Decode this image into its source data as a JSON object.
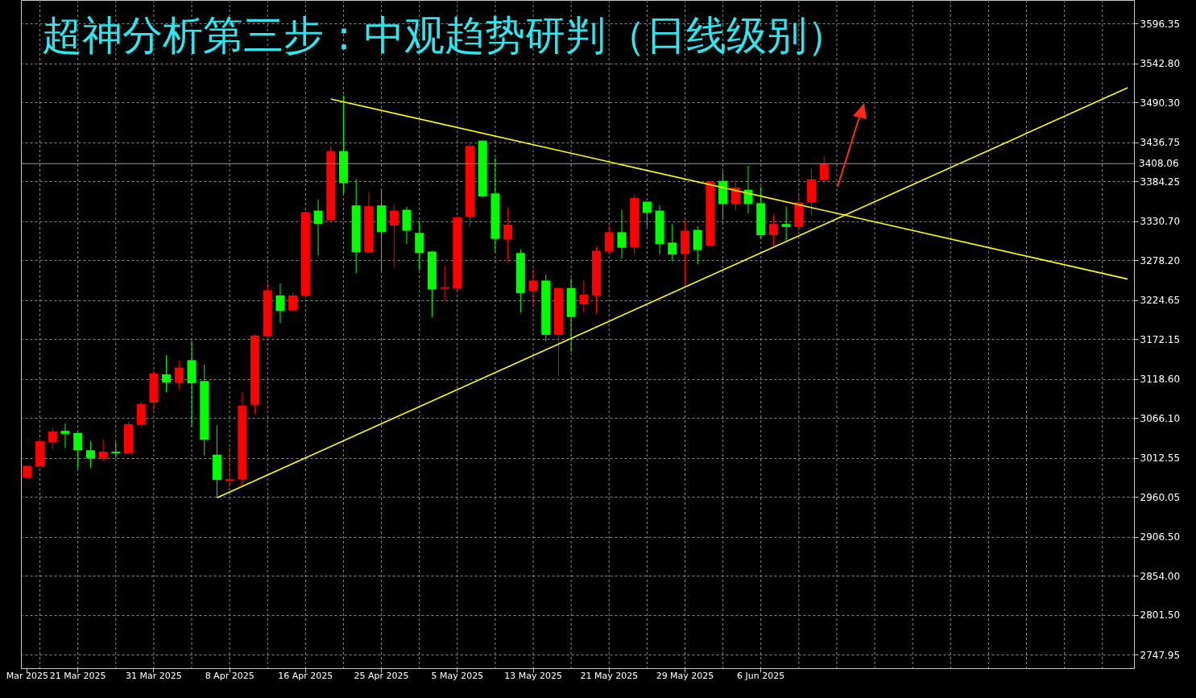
{
  "chart_data": {
    "type": "candlestick",
    "title": "超神分析第三步：中观趋势研判（日线级别）",
    "categories": [
      "Mar 2025",
      null,
      null,
      null,
      "21 Mar 2025",
      null,
      null,
      null,
      null,
      null,
      "31 Mar 2025",
      null,
      null,
      null,
      null,
      null,
      "8 Apr 2025",
      null,
      null,
      null,
      null,
      null,
      "16 Apr 2025",
      null,
      null,
      null,
      null,
      null,
      "25 Apr 2025",
      null,
      null,
      null,
      null,
      null,
      "5 May 2025",
      null,
      null,
      null,
      null,
      null,
      "13 May 2025",
      null,
      null,
      null,
      null,
      null,
      "21 May 2025",
      null,
      null,
      null,
      null,
      null,
      "29 May 2025",
      null,
      null,
      null,
      null,
      null,
      "6 Jun 2025",
      null,
      null,
      null,
      null,
      null,
      null,
      null,
      null,
      null,
      null,
      null,
      null,
      null,
      null,
      null,
      null,
      null,
      null,
      null,
      null,
      null,
      null,
      null,
      null,
      null,
      null,
      null,
      null,
      null
    ],
    "ohlc": [
      [
        2986,
        3003,
        2984,
        3002
      ],
      [
        3001,
        3039,
        3001,
        3035
      ],
      [
        3034,
        3053,
        3024,
        3048
      ],
      [
        3049,
        3059,
        3026,
        3045
      ],
      [
        3046,
        3047,
        2998,
        3023
      ],
      [
        3023,
        3035,
        2999,
        3012
      ],
      [
        3012,
        3037,
        3008,
        3021
      ],
      [
        3021,
        3034,
        3012,
        3019
      ],
      [
        3019,
        3061,
        3018,
        3058
      ],
      [
        3057,
        3088,
        3054,
        3085
      ],
      [
        3087,
        3130,
        3077,
        3126
      ],
      [
        3125,
        3151,
        3101,
        3114
      ],
      [
        3114,
        3144,
        3105,
        3134
      ],
      [
        3144,
        3170,
        3055,
        3113
      ],
      [
        3116,
        3138,
        3016,
        3037
      ],
      [
        3017,
        3057,
        2959,
        2983
      ],
      [
        2982,
        3027,
        2973,
        2984
      ],
      [
        2984,
        3101,
        2975,
        3083
      ],
      [
        3084,
        3179,
        3072,
        3177
      ],
      [
        3176,
        3247,
        3175,
        3238
      ],
      [
        3231,
        3247,
        3194,
        3210
      ],
      [
        3211,
        3235,
        3210,
        3231
      ],
      [
        3231,
        3344,
        3230,
        3343
      ],
      [
        3345,
        3360,
        3285,
        3327
      ],
      [
        3332,
        3432,
        3329,
        3425
      ],
      [
        3425,
        3500,
        3368,
        3382
      ],
      [
        3352,
        3387,
        3261,
        3289
      ],
      [
        3289,
        3370,
        3289,
        3351
      ],
      [
        3352,
        3372,
        3264,
        3316
      ],
      [
        3325,
        3354,
        3269,
        3345
      ],
      [
        3346,
        3350,
        3300,
        3318
      ],
      [
        3315,
        3331,
        3265,
        3288
      ],
      [
        3290,
        3291,
        3202,
        3239
      ],
      [
        3240,
        3271,
        3224,
        3242
      ],
      [
        3240,
        3338,
        3237,
        3336
      ],
      [
        3337,
        3437,
        3323,
        3432
      ],
      [
        3439,
        3439,
        3362,
        3364
      ],
      [
        3368,
        3416,
        3289,
        3307
      ],
      [
        3306,
        3349,
        3275,
        3326
      ],
      [
        3288,
        3293,
        3208,
        3234
      ],
      [
        3237,
        3267,
        3217,
        3251
      ],
      [
        3251,
        3259,
        3169,
        3178
      ],
      [
        3178,
        3241,
        3123,
        3241
      ],
      [
        3241,
        3254,
        3155,
        3202
      ],
      [
        3219,
        3251,
        3208,
        3232
      ],
      [
        3231,
        3297,
        3206,
        3291
      ],
      [
        3290,
        3326,
        3286,
        3316
      ],
      [
        3316,
        3346,
        3280,
        3295
      ],
      [
        3296,
        3367,
        3287,
        3362
      ],
      [
        3357,
        3357,
        3323,
        3342
      ],
      [
        3345,
        3352,
        3286,
        3300
      ],
      [
        3302,
        3327,
        3277,
        3286
      ],
      [
        3287,
        3332,
        3245,
        3318
      ],
      [
        3319,
        3324,
        3273,
        3292
      ],
      [
        3298,
        3386,
        3297,
        3384
      ],
      [
        3385,
        3397,
        3334,
        3354
      ],
      [
        3354,
        3387,
        3345,
        3376
      ],
      [
        3373,
        3405,
        3341,
        3354
      ],
      [
        3355,
        3377,
        3307,
        3312
      ],
      [
        3312,
        3340,
        3298,
        3327
      ],
      [
        3327,
        3350,
        3305,
        3323
      ],
      [
        3323,
        3365,
        3317,
        3356
      ],
      [
        3356,
        3401,
        3339,
        3387
      ],
      [
        3386,
        3418,
        3381,
        3408
      ],
      null,
      null,
      null,
      null,
      null,
      null,
      null,
      null,
      null,
      null,
      null,
      null,
      null,
      null,
      null,
      null,
      null,
      null,
      null,
      null,
      null,
      null,
      null,
      null
    ],
    "colors": [
      "#ff0000",
      "#ff0000",
      "#ff0000",
      "#00ff00",
      "#00ff00",
      "#00ff00",
      "#ff0000",
      "#00ff00",
      "#ff0000",
      "#ff0000",
      "#ff0000",
      "#00ff00",
      "#ff0000",
      "#00ff00",
      "#00ff00",
      "#00ff00",
      "#ff0000",
      "#ff0000",
      "#ff0000",
      "#ff0000",
      "#00ff00",
      "#ff0000",
      "#ff0000",
      "#00ff00",
      "#ff0000",
      "#00ff00",
      "#00ff00",
      "#ff0000",
      "#00ff00",
      "#ff0000",
      "#00ff00",
      "#00ff00",
      "#00ff00",
      "#ff0000",
      "#ff0000",
      "#ff0000",
      "#00ff00",
      "#00ff00",
      "#ff0000",
      "#00ff00",
      "#ff0000",
      "#00ff00",
      "#ff0000",
      "#00ff00",
      "#ff0000",
      "#ff0000",
      "#ff0000",
      "#00ff00",
      "#ff0000",
      "#00ff00",
      "#00ff00",
      "#00ff00",
      "#ff0000",
      "#00ff00",
      "#ff0000",
      "#00ff00",
      "#ff0000",
      "#00ff00",
      "#00ff00",
      "#ff0000",
      "#00ff00",
      "#ff0000",
      "#ff0000",
      "#ff0000",
      null,
      null,
      null,
      null,
      null,
      null,
      null,
      null,
      null,
      null,
      null,
      null,
      null,
      null,
      null,
      null,
      null,
      null,
      null,
      null,
      null,
      null,
      null,
      null
    ],
    "series": [
      {
        "type": "line",
        "color": "#ffff00",
        "values": [
          null,
          null,
          null,
          null,
          null,
          null,
          null,
          null,
          null,
          null,
          null,
          null,
          null,
          null,
          null,
          null,
          null,
          null,
          null,
          null,
          null,
          null,
          null,
          null,
          3495,
          null,
          null,
          null,
          null,
          null,
          null,
          null,
          null,
          null,
          null,
          null,
          null,
          null,
          null,
          null,
          null,
          null,
          null,
          null,
          null,
          null,
          null,
          null,
          null,
          null,
          null,
          null,
          null,
          null,
          null,
          null,
          null,
          null,
          null,
          null,
          null,
          null,
          null,
          null,
          null,
          null,
          null,
          null,
          null,
          null,
          null,
          null,
          null,
          null,
          null,
          null,
          null,
          null,
          null,
          null,
          null,
          null,
          null,
          null,
          null,
          null,
          null,
          3253
        ]
      },
      {
        "type": "line",
        "color": "#ffff00",
        "values": [
          null,
          null,
          null,
          null,
          null,
          null,
          null,
          null,
          null,
          null,
          null,
          null,
          null,
          null,
          null,
          2959,
          null,
          null,
          null,
          null,
          null,
          null,
          null,
          null,
          null,
          null,
          null,
          null,
          null,
          null,
          null,
          null,
          null,
          null,
          null,
          null,
          null,
          null,
          null,
          null,
          null,
          null,
          null,
          null,
          null,
          null,
          null,
          null,
          null,
          null,
          null,
          null,
          null,
          null,
          null,
          null,
          null,
          null,
          null,
          null,
          null,
          null,
          null,
          null,
          null,
          null,
          null,
          null,
          null,
          null,
          null,
          null,
          null,
          null,
          null,
          null,
          null,
          null,
          null,
          null,
          null,
          null,
          null,
          null,
          null,
          null,
          null,
          3510
        ]
      }
    ],
    "ylim": [
      2730,
      3628
    ],
    "yticks": [
      2747.95,
      {
        "value": 2801.5,
        "label": "2801.50"
      },
      {
        "value": 2854,
        "label": "2854.00"
      },
      {
        "value": 2906.5,
        "label": "2906.50"
      },
      2960.05,
      3012.55,
      {
        "value": 3066.1,
        "label": "3066.10"
      },
      {
        "value": 3118.6,
        "label": "3118.60"
      },
      3172.15,
      3224.65,
      {
        "value": 3278.2,
        "label": "3278.20"
      },
      {
        "value": 3330.7,
        "label": "3330.70"
      },
      3384.25,
      3436.75,
      {
        "value": 3490.3,
        "label": "3490.30"
      },
      {
        "value": 3542.8,
        "label": "3542.80"
      },
      3596.35
    ],
    "ref_lines": [
      {
        "axis": "y",
        "value": 3408.06,
        "label": "3408.06",
        "color": "#9a9a9a"
      }
    ],
    "grid": true
  }
}
